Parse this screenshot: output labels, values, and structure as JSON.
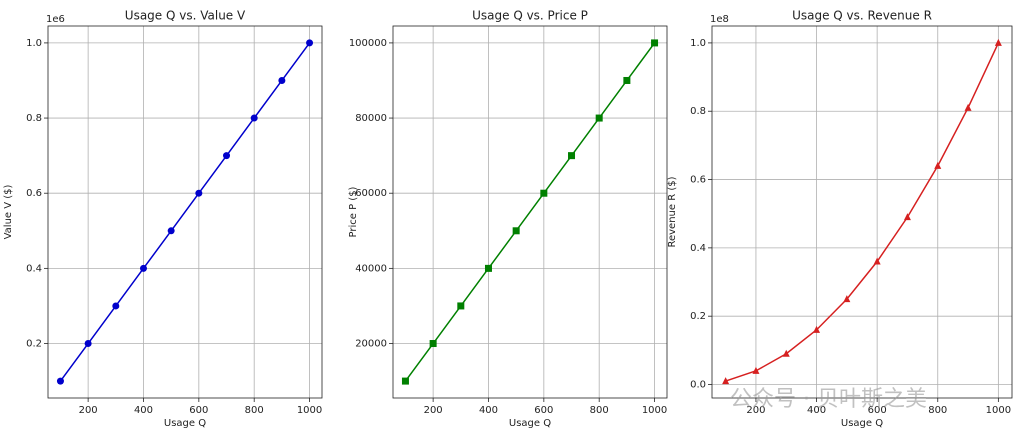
{
  "chart_data": [
    {
      "type": "line",
      "title": "Usage Q vs. Value V",
      "x_label": "Usage Q",
      "y_label": "Value V ($)",
      "y_offset_label": "1e6",
      "x": [
        100,
        200,
        300,
        400,
        500,
        600,
        700,
        800,
        900,
        1000
      ],
      "series": [
        {
          "name": "Value V",
          "color": "#0000cc",
          "marker": "circle",
          "values": [
            0.1,
            0.2,
            0.3,
            0.4,
            0.5,
            0.6,
            0.7,
            0.8,
            0.9,
            1.0
          ]
        }
      ],
      "xlim": [
        55,
        1045
      ],
      "xticks": [
        200,
        400,
        600,
        800,
        1000
      ],
      "ylim": [
        0.055,
        1.045
      ],
      "yticks": [
        0.2,
        0.4,
        0.6,
        0.8,
        {
          "value": 1,
          "label": "1.0"
        }
      ],
      "grid": true
    },
    {
      "type": "line",
      "title": "Usage Q vs. Price P",
      "x_label": "Usage Q",
      "y_label": "Price P ($)",
      "x": [
        100,
        200,
        300,
        400,
        500,
        600,
        700,
        800,
        900,
        1000
      ],
      "series": [
        {
          "name": "Price P",
          "color": "#008000",
          "marker": "square",
          "values": [
            10000,
            20000,
            30000,
            40000,
            50000,
            60000,
            70000,
            80000,
            90000,
            100000
          ]
        }
      ],
      "xlim": [
        55,
        1045
      ],
      "xticks": [
        200,
        400,
        600,
        800,
        1000
      ],
      "ylim": [
        5500,
        104500
      ],
      "yticks": [
        20000,
        40000,
        60000,
        80000,
        100000
      ],
      "grid": true
    },
    {
      "type": "line",
      "title": "Usage Q vs. Revenue R",
      "x_label": "Usage Q",
      "y_label": "Revenue R ($)",
      "y_offset_label": "1e8",
      "x": [
        100,
        200,
        300,
        400,
        500,
        600,
        700,
        800,
        900,
        1000
      ],
      "series": [
        {
          "name": "Revenue R",
          "color": "#d62020",
          "marker": "triangle",
          "values": [
            0.01,
            0.04,
            0.09,
            0.16,
            0.25,
            0.36,
            0.49,
            0.64,
            0.81,
            1.0
          ]
        }
      ],
      "xlim": [
        55,
        1045
      ],
      "xticks": [
        200,
        400,
        600,
        800,
        1000
      ],
      "ylim": [
        -0.0395,
        1.0495
      ],
      "yticks": [
        {
          "value": 0,
          "label": "0.0"
        },
        0.2,
        0.4,
        0.6,
        0.8,
        {
          "value": 1,
          "label": "1.0"
        }
      ],
      "grid": true
    }
  ],
  "watermark": "公众号 · 贝叶斯之美"
}
